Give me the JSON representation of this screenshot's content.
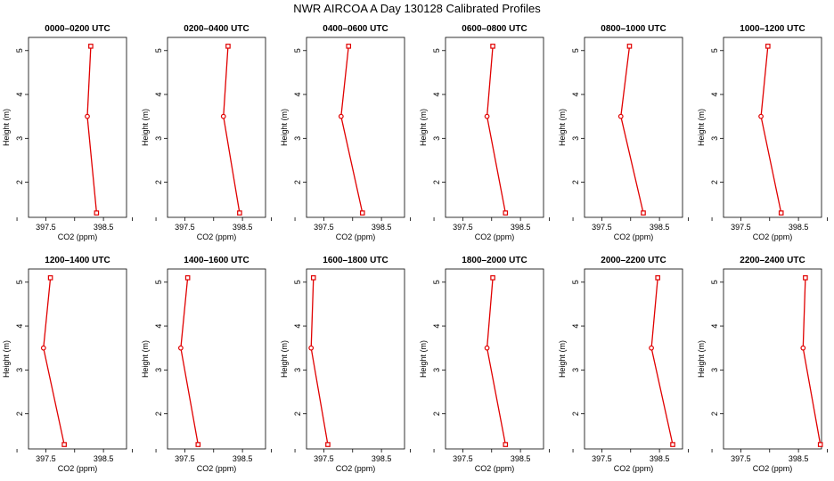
{
  "figure_title": "NWR AIRCOA A  Day 130128  Calibrated Profiles",
  "chart_data": [
    {
      "type": "line",
      "title": "0000–0200 UTC",
      "xlabel": "CO2 (ppm)",
      "ylabel": "Height (m)",
      "xlim": [
        397.2,
        398.9
      ],
      "ylim": [
        1.2,
        5.3
      ],
      "xticks": [
        "397.5",
        "398.5"
      ],
      "yticks": [
        "2",
        "3",
        "4",
        "5"
      ],
      "x": [
        398.28,
        398.22,
        398.38
      ],
      "y": [
        5.1,
        3.5,
        1.3
      ]
    },
    {
      "type": "line",
      "title": "0200–0400 UTC",
      "xlabel": "CO2 (ppm)",
      "ylabel": "Height (m)",
      "xlim": [
        397.2,
        398.9
      ],
      "ylim": [
        1.2,
        5.3
      ],
      "xticks": [
        "397.5",
        "398.5"
      ],
      "yticks": [
        "2",
        "3",
        "4",
        "5"
      ],
      "x": [
        398.25,
        398.17,
        398.45
      ],
      "y": [
        5.1,
        3.5,
        1.3
      ]
    },
    {
      "type": "line",
      "title": "0400–0600 UTC",
      "xlabel": "CO2 (ppm)",
      "ylabel": "Height (m)",
      "xlim": [
        397.2,
        398.9
      ],
      "ylim": [
        1.2,
        5.3
      ],
      "xticks": [
        "397.5",
        "398.5"
      ],
      "yticks": [
        "2",
        "3",
        "4",
        "5"
      ],
      "x": [
        397.93,
        397.8,
        398.17
      ],
      "y": [
        5.1,
        3.5,
        1.3
      ]
    },
    {
      "type": "line",
      "title": "0600–0800 UTC",
      "xlabel": "CO2 (ppm)",
      "ylabel": "Height (m)",
      "xlim": [
        397.2,
        398.9
      ],
      "ylim": [
        1.2,
        5.3
      ],
      "xticks": [
        "397.5",
        "398.5"
      ],
      "yticks": [
        "2",
        "3",
        "4",
        "5"
      ],
      "x": [
        398.02,
        397.92,
        398.24
      ],
      "y": [
        5.1,
        3.5,
        1.3
      ]
    },
    {
      "type": "line",
      "title": "0800–1000 UTC",
      "xlabel": "CO2 (ppm)",
      "ylabel": "Height (m)",
      "xlim": [
        397.2,
        398.9
      ],
      "ylim": [
        1.2,
        5.3
      ],
      "xticks": [
        "397.5",
        "398.5"
      ],
      "yticks": [
        "2",
        "3",
        "4",
        "5"
      ],
      "x": [
        397.98,
        397.83,
        398.22
      ],
      "y": [
        5.1,
        3.5,
        1.3
      ]
    },
    {
      "type": "line",
      "title": "1000–1200 UTC",
      "xlabel": "CO2 (ppm)",
      "ylabel": "Height (m)",
      "xlim": [
        397.2,
        398.9
      ],
      "ylim": [
        1.2,
        5.3
      ],
      "xticks": [
        "397.5",
        "398.5"
      ],
      "yticks": [
        "2",
        "3",
        "4",
        "5"
      ],
      "x": [
        397.97,
        397.85,
        398.2
      ],
      "y": [
        5.1,
        3.5,
        1.3
      ]
    },
    {
      "type": "line",
      "title": "1200–1400 UTC",
      "xlabel": "CO2 (ppm)",
      "ylabel": "Height (m)",
      "xlim": [
        397.2,
        398.9
      ],
      "ylim": [
        1.2,
        5.3
      ],
      "xticks": [
        "397.5",
        "398.5"
      ],
      "yticks": [
        "2",
        "3",
        "4",
        "5"
      ],
      "x": [
        397.58,
        397.46,
        397.82
      ],
      "y": [
        5.1,
        3.5,
        1.3
      ]
    },
    {
      "type": "line",
      "title": "1400–1600 UTC",
      "xlabel": "CO2 (ppm)",
      "ylabel": "Height (m)",
      "xlim": [
        397.2,
        398.9
      ],
      "ylim": [
        1.2,
        5.3
      ],
      "xticks": [
        "397.5",
        "398.5"
      ],
      "yticks": [
        "2",
        "3",
        "4",
        "5"
      ],
      "x": [
        397.55,
        397.43,
        397.73
      ],
      "y": [
        5.1,
        3.5,
        1.3
      ]
    },
    {
      "type": "line",
      "title": "1600–1800 UTC",
      "xlabel": "CO2 (ppm)",
      "ylabel": "Height (m)",
      "xlim": [
        397.2,
        398.9
      ],
      "ylim": [
        1.2,
        5.3
      ],
      "xticks": [
        "397.5",
        "398.5"
      ],
      "yticks": [
        "2",
        "3",
        "4",
        "5"
      ],
      "x": [
        397.32,
        397.28,
        397.57
      ],
      "y": [
        5.1,
        3.5,
        1.3
      ]
    },
    {
      "type": "line",
      "title": "1800–2000 UTC",
      "xlabel": "CO2 (ppm)",
      "ylabel": "Height (m)",
      "xlim": [
        397.2,
        398.9
      ],
      "ylim": [
        1.2,
        5.3
      ],
      "xticks": [
        "397.5",
        "398.5"
      ],
      "yticks": [
        "2",
        "3",
        "4",
        "5"
      ],
      "x": [
        398.02,
        397.92,
        398.24
      ],
      "y": [
        5.1,
        3.5,
        1.3
      ]
    },
    {
      "type": "line",
      "title": "2000–2200 UTC",
      "xlabel": "CO2 (ppm)",
      "ylabel": "Height (m)",
      "xlim": [
        397.2,
        398.9
      ],
      "ylim": [
        1.2,
        5.3
      ],
      "xticks": [
        "397.5",
        "398.5"
      ],
      "yticks": [
        "2",
        "3",
        "4",
        "5"
      ],
      "x": [
        398.47,
        398.36,
        398.73
      ],
      "y": [
        5.1,
        3.5,
        1.3
      ]
    },
    {
      "type": "line",
      "title": "2200–2400 UTC",
      "xlabel": "CO2 (ppm)",
      "ylabel": "Height (m)",
      "xlim": [
        397.2,
        398.9
      ],
      "ylim": [
        1.2,
        5.3
      ],
      "xticks": [
        "397.5",
        "398.5"
      ],
      "yticks": [
        "2",
        "3",
        "4",
        "5"
      ],
      "x": [
        398.62,
        398.58,
        398.88
      ],
      "y": [
        5.1,
        3.5,
        1.3
      ]
    }
  ],
  "colors": {
    "series": "#e00000",
    "axis": "#000000"
  }
}
